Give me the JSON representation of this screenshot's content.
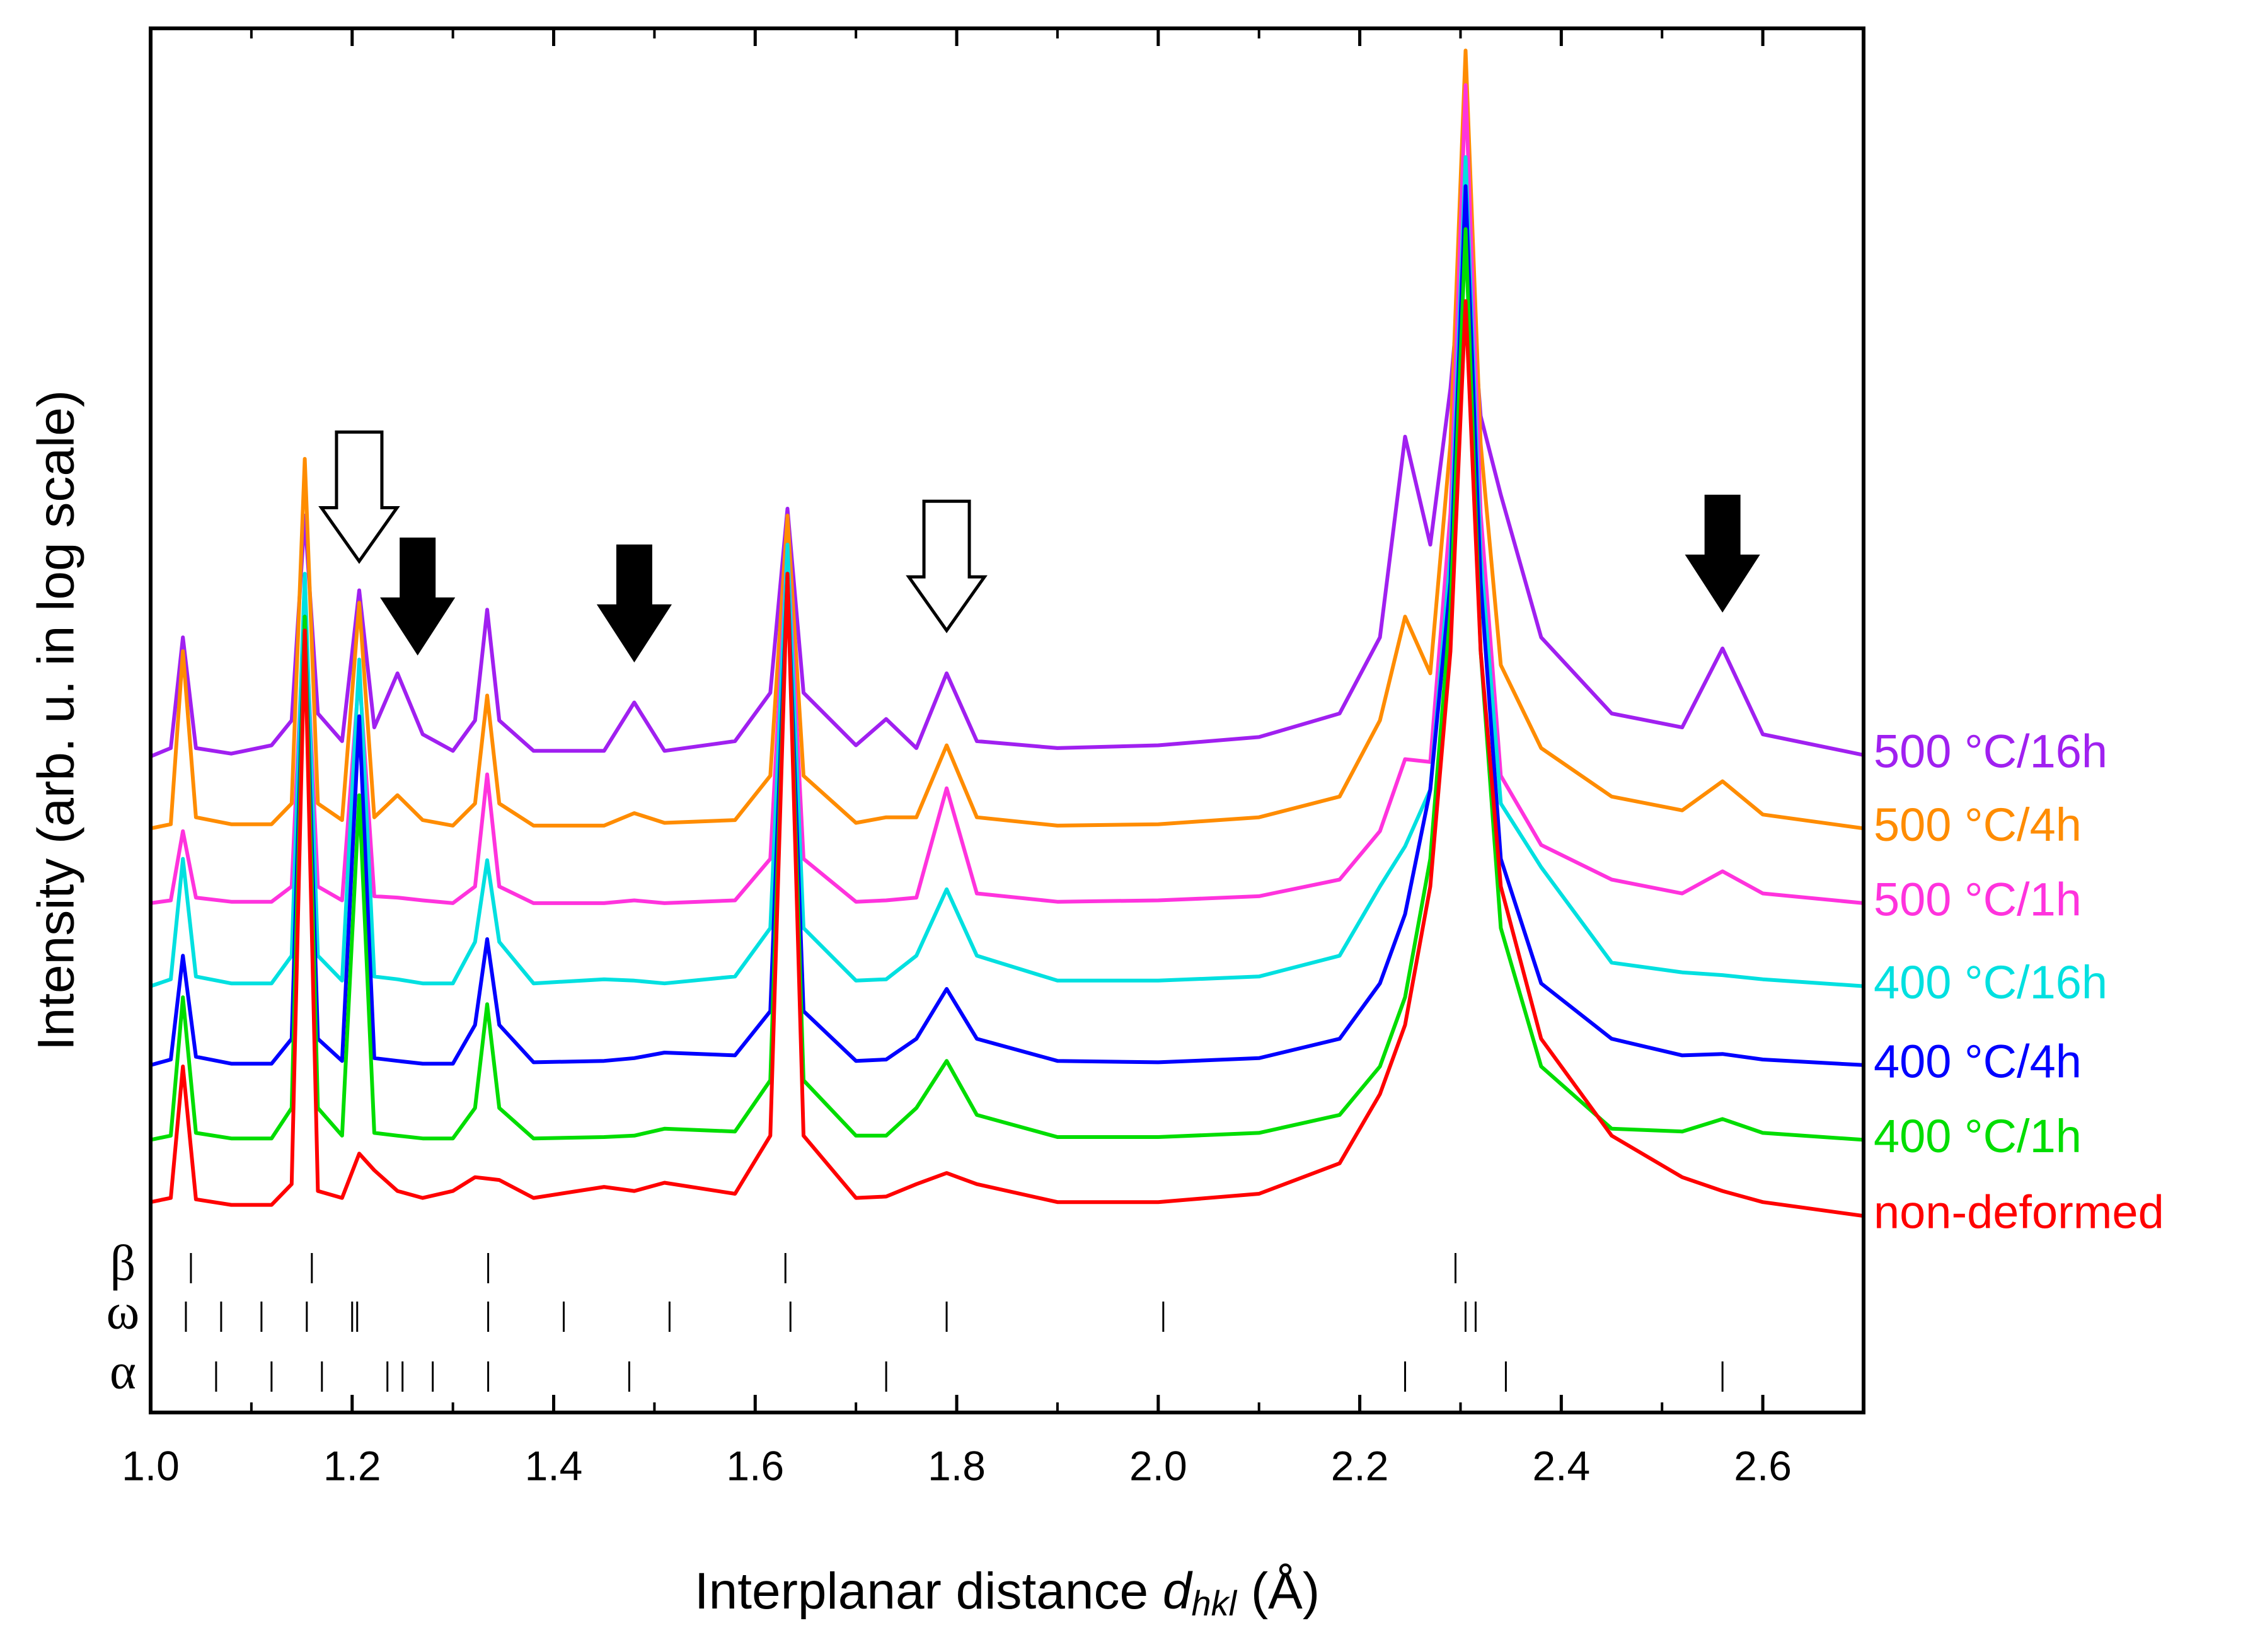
{
  "chart_data": {
    "type": "line",
    "ylabel": "Intensity (arb. u. in log scale)",
    "xlabel": [
      "Interplanar distance ",
      "d",
      "hkl",
      " (Å)"
    ],
    "xlim": [
      1.0,
      2.7
    ],
    "ylim": [
      0,
      100
    ],
    "xticks": [
      {
        "value": 1.0,
        "label": "1.0"
      },
      1.2,
      1.4,
      1.6,
      1.8,
      {
        "value": 2.0,
        "label": "2.0"
      },
      2.2,
      2.4,
      2.6
    ],
    "xminor": [
      1.1,
      1.3,
      1.5,
      1.7,
      1.9,
      2.1,
      2.3,
      2.5
    ],
    "x": [
      1.0,
      1.02,
      1.032,
      1.045,
      1.08,
      1.12,
      1.14,
      1.153,
      1.166,
      1.19,
      1.207,
      1.222,
      1.245,
      1.27,
      1.3,
      1.322,
      1.334,
      1.346,
      1.38,
      1.45,
      1.48,
      1.51,
      1.58,
      1.615,
      1.632,
      1.648,
      1.7,
      1.73,
      1.76,
      1.79,
      1.82,
      1.9,
      2.0,
      2.1,
      2.18,
      2.22,
      2.245,
      2.27,
      2.29,
      2.305,
      2.32,
      2.34,
      2.38,
      2.45,
      2.52,
      2.56,
      2.6,
      2.7
    ],
    "series": [
      {
        "name": "500 °C/16h",
        "color": "#a020f0",
        "values": [
          47.4,
          48,
          56.0,
          48,
          47.6,
          48.2,
          50,
          64.8,
          50.5,
          48.5,
          59.4,
          49.5,
          53.4,
          49,
          47.8,
          50,
          58.0,
          50,
          47.8,
          47.8,
          51.3,
          47.8,
          48.5,
          52,
          65.3,
          52,
          48.2,
          50.1,
          48,
          53.4,
          48.5,
          48,
          48.2,
          48.8,
          50.5,
          56,
          70.5,
          62.7,
          74,
          86.5,
          72,
          66.3,
          56,
          50.5,
          49.5,
          55.2,
          49,
          47.5
        ]
      },
      {
        "name": "500 °C/4h",
        "color": "#ff8c00",
        "values": [
          42.2,
          42.5,
          55,
          43,
          42.5,
          42.5,
          44,
          68.9,
          44,
          42.8,
          58.5,
          43,
          44.6,
          42.8,
          42.4,
          44,
          51.8,
          44,
          42.4,
          42.4,
          43.3,
          42.6,
          42.8,
          46,
          64.8,
          46,
          42.6,
          43,
          43,
          48.2,
          43,
          42.4,
          42.5,
          43,
          44.5,
          50,
          57.5,
          53.4,
          70,
          98.4,
          70,
          54,
          48,
          44.5,
          43.5,
          45.6,
          43.2,
          42.2
        ]
      },
      {
        "name": "500 °C/1h",
        "color": "#ff33dd",
        "values": [
          36.8,
          37,
          42,
          37.2,
          36.9,
          36.9,
          38,
          58.5,
          38,
          37,
          53.4,
          37.3,
          37.2,
          37,
          36.8,
          38,
          46.1,
          38,
          36.8,
          36.8,
          37,
          36.8,
          37,
          40,
          62.7,
          40,
          36.9,
          37,
          37.2,
          45.1,
          37.5,
          36.9,
          37,
          37.3,
          38.5,
          42,
          47.2,
          47,
          65,
          95.9,
          65,
          46,
          41,
          38.5,
          37.5,
          39.1,
          37.5,
          36.8
        ]
      },
      {
        "name": "400 °C/16h",
        "color": "#00e0e0",
        "values": [
          30.8,
          31.3,
          40,
          31.5,
          31,
          31,
          33,
          60.6,
          33,
          31.2,
          54.4,
          31.5,
          31.3,
          31,
          31,
          34,
          39.9,
          34,
          31,
          31.3,
          31.2,
          31,
          31.5,
          35,
          62.7,
          35,
          31.2,
          31.3,
          33,
          37.8,
          33,
          31.2,
          31.2,
          31.5,
          33,
          38,
          40.9,
          45,
          62,
          90.7,
          62,
          44,
          39.4,
          32.5,
          31.8,
          31.6,
          31.3,
          30.8
        ]
      },
      {
        "name": "400 °C/4h",
        "color": "#0000ff",
        "values": [
          25.1,
          25.5,
          33,
          25.7,
          25.2,
          25.2,
          27,
          57.5,
          27,
          25.4,
          50.3,
          25.6,
          25.4,
          25.2,
          25.2,
          28,
          34.2,
          28,
          25.3,
          25.4,
          25.6,
          26,
          25.8,
          29,
          60.6,
          29,
          25.4,
          25.5,
          27,
          30.6,
          27,
          25.4,
          25.3,
          25.6,
          27,
          31,
          36,
          45,
          60,
          88.6,
          60,
          40,
          31,
          27,
          25.8,
          25.9,
          25.5,
          25.1
        ]
      },
      {
        "name": "400 °C/1h",
        "color": "#00dd00",
        "values": [
          19.7,
          20,
          30,
          20.2,
          19.8,
          19.8,
          22,
          57.5,
          22,
          20,
          44.6,
          20.2,
          20,
          19.8,
          19.8,
          22,
          29.5,
          22,
          19.8,
          19.9,
          20,
          20.5,
          20.3,
          24,
          60.6,
          24,
          20,
          20,
          22,
          25.4,
          21.5,
          19.9,
          19.9,
          20.2,
          21.5,
          25,
          30,
          40,
          58,
          85.5,
          55,
          35,
          25,
          20.5,
          20.3,
          21.2,
          20.2,
          19.7
        ]
      },
      {
        "name": "non-deformed",
        "color": "#ff0000",
        "values": [
          15.2,
          15.5,
          25,
          15.4,
          15,
          15,
          16.5,
          56.5,
          16,
          15.5,
          18.7,
          17.5,
          16,
          15.5,
          16,
          17,
          16.9,
          16.8,
          15.5,
          16.3,
          16,
          16.6,
          15.8,
          20,
          60.6,
          20,
          15.5,
          15.6,
          16.5,
          17.3,
          16.5,
          15.2,
          15.2,
          15.8,
          18,
          23,
          28,
          38,
          55,
          80.3,
          55,
          38,
          27,
          20,
          17,
          16,
          15.2,
          14.2
        ]
      }
    ],
    "reflections": [
      {
        "name": "β",
        "positions": [
          1.04,
          1.16,
          1.335,
          1.63,
          2.295
        ]
      },
      {
        "name": "ω",
        "positions": [
          1.035,
          1.07,
          1.11,
          1.155,
          1.2,
          1.205,
          1.335,
          1.41,
          1.515,
          1.635,
          1.79,
          2.005,
          2.305,
          2.315
        ]
      },
      {
        "name": "α",
        "positions": [
          1.065,
          1.12,
          1.17,
          1.235,
          1.25,
          1.28,
          1.335,
          1.475,
          1.73,
          2.245,
          2.345,
          2.56
        ]
      }
    ],
    "arrows": [
      {
        "x": 1.207,
        "y": 61.5,
        "filled": false
      },
      {
        "x": 1.265,
        "y": 54.9,
        "filled": true
      },
      {
        "x": 1.48,
        "y": 54.4,
        "filled": true
      },
      {
        "x": 1.79,
        "y": 56.5,
        "filled": false
      },
      {
        "x": 2.56,
        "y": 58.0,
        "filled": true
      }
    ]
  }
}
